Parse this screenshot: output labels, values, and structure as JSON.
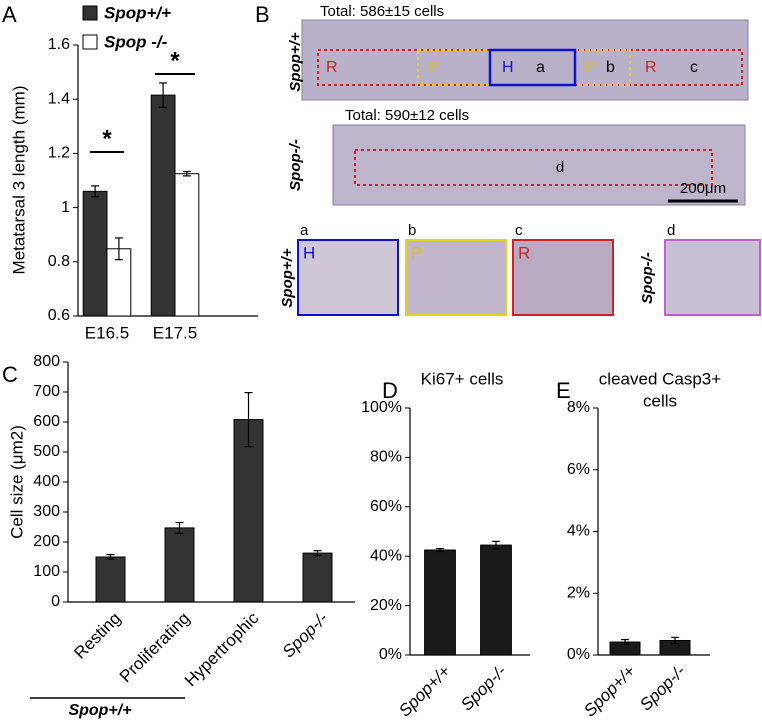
{
  "chart_data": [
    {
      "type": "bar",
      "label": "A",
      "ylabel": "Metatarsal 3 length (mm)",
      "categories": [
        "E16.5",
        "E17.5"
      ],
      "series": [
        {
          "name": "Spop+/+",
          "color": "#333333",
          "values": [
            1.06,
            1.415
          ],
          "errors": [
            0.02,
            0.045
          ]
        },
        {
          "name": "Spop -/-",
          "color": "#ffffff",
          "values": [
            0.848,
            1.125
          ],
          "errors": [
            0.04,
            0.008
          ]
        }
      ],
      "ylim": [
        0.6,
        1.6
      ],
      "yticks": [
        0.6,
        0.8,
        1,
        1.2,
        1.4,
        1.6
      ],
      "annotations": [
        "*",
        "*"
      ],
      "legend": "top-left"
    },
    {
      "type": "bar",
      "label": "C",
      "ylabel": "Cell size (μm2)",
      "categories": [
        "Resting",
        "Proliferating",
        "Hypertrophic",
        "Spop-/-"
      ],
      "values": [
        150,
        247,
        608,
        163
      ],
      "errors": [
        8,
        18,
        90,
        8
      ],
      "color": "#333333",
      "ylim": [
        0,
        800
      ],
      "yticks": [
        0,
        100,
        200,
        300,
        400,
        500,
        600,
        700,
        800
      ],
      "group_label": "Spop+/+"
    },
    {
      "type": "bar",
      "label": "D",
      "title": [
        "Ki67+ cells"
      ],
      "categories": [
        "Spop+/+",
        "Spop-/-"
      ],
      "values": [
        42.5,
        44.5
      ],
      "errors": [
        0.6,
        1.5
      ],
      "color": "#1a1a1a",
      "ylim": [
        0,
        100
      ],
      "yticks": [
        {
          "value": 0,
          "label": "0%"
        },
        {
          "value": 20,
          "label": "20%"
        },
        {
          "value": 40,
          "label": "40%"
        },
        {
          "value": 60,
          "label": "60%"
        },
        {
          "value": 80,
          "label": "80%"
        },
        {
          "value": 100,
          "label": "100%"
        }
      ]
    },
    {
      "type": "bar",
      "label": "E",
      "title": [
        "cleaved Casp3+",
        "cells"
      ],
      "categories": [
        "Spop+/+",
        "Spop-/-"
      ],
      "values": [
        0.42,
        0.47
      ],
      "errors": [
        0.08,
        0.1
      ],
      "color": "#1a1a1a",
      "ylim": [
        0,
        8
      ],
      "yticks": [
        {
          "value": 0,
          "label": "0%"
        },
        {
          "value": 2,
          "label": "2%"
        },
        {
          "value": 4,
          "label": "4%"
        },
        {
          "value": 6,
          "label": "6%"
        },
        {
          "value": 8,
          "label": "8%"
        }
      ]
    }
  ],
  "panel_b": {
    "label": "B",
    "top": {
      "genotype": "Spop+/+",
      "total": "Total: 586±15 cells",
      "zones": [
        "R",
        "P",
        "H",
        "a",
        "P",
        "b",
        "R",
        "c"
      ]
    },
    "bottom": {
      "genotype": "Spop-/-",
      "total": "Total: 590±12 cells",
      "region": "d"
    },
    "scale_bar": "200μm",
    "insets": [
      {
        "letter": "a",
        "zone": "H"
      },
      {
        "letter": "b",
        "zone": "P"
      },
      {
        "letter": "c",
        "zone": "R"
      },
      {
        "letter": "d"
      }
    ],
    "inset_genotypes": [
      "Spop+/+",
      "Spop-/-"
    ]
  }
}
